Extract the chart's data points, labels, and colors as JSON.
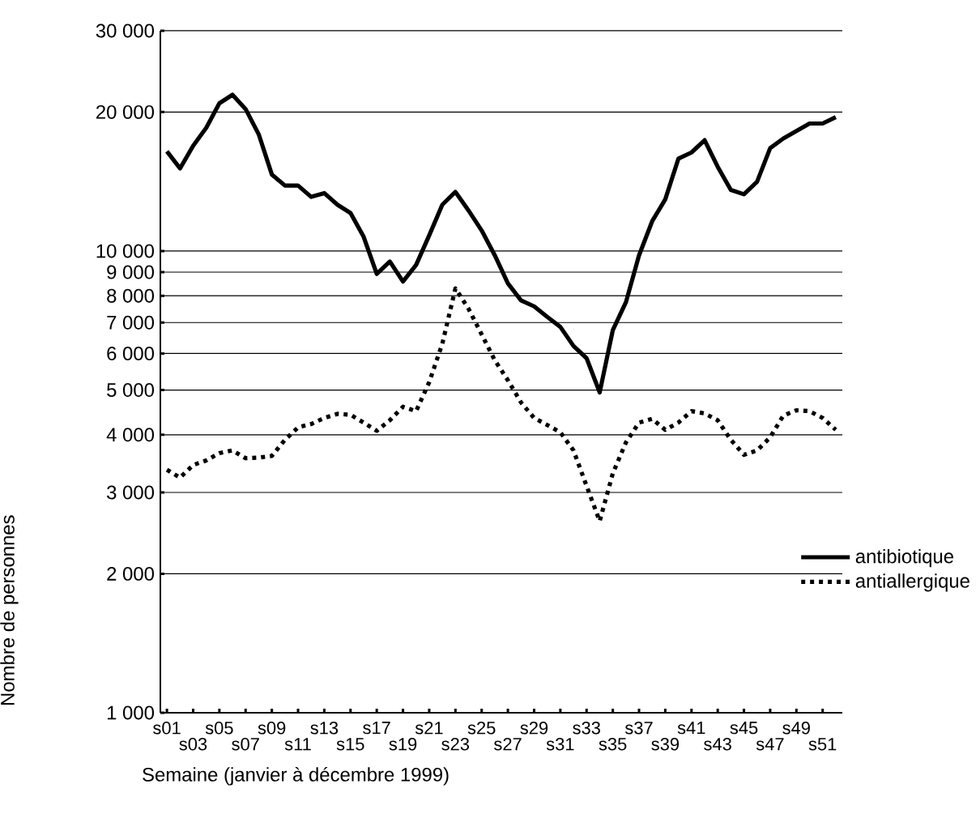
{
  "chart_data": {
    "type": "line",
    "xlabel": "Semaine (janvier à décembre 1999)",
    "ylabel": "Nombre de personnes",
    "categories": [
      "s01",
      null,
      "s03",
      null,
      "s05",
      null,
      "s07",
      null,
      "s09",
      null,
      "s11",
      null,
      "s13",
      null,
      "s15",
      null,
      "s17",
      null,
      "s19",
      null,
      "s21",
      null,
      "s23",
      null,
      "s25",
      null,
      "s27",
      null,
      "s29",
      null,
      "s31",
      null,
      "s33",
      null,
      "s35",
      null,
      "s37",
      null,
      "s39",
      null,
      "s41",
      null,
      "s43",
      null,
      "s45",
      null,
      "s47",
      null,
      "s49",
      null,
      "s51",
      null
    ],
    "series": [
      {
        "name": "antibiotique",
        "color": "#000000",
        "line_style": "solid",
        "values": [
          16440,
          15100,
          16900,
          18500,
          20900,
          21800,
          20300,
          17900,
          14650,
          13860,
          13860,
          13100,
          13350,
          12600,
          12090,
          10740,
          8920,
          9490,
          8590,
          9330,
          10810,
          12600,
          13430,
          12240,
          11080,
          9790,
          8510,
          7820,
          7590,
          7200,
          6850,
          6230,
          5860,
          4940,
          6740,
          7750,
          9790,
          11600,
          12940,
          15850,
          16350,
          17380,
          15220,
          13560,
          13270,
          14130,
          16710,
          17530,
          18200,
          18890,
          18890,
          19500
        ]
      },
      {
        "name": "antiallergique",
        "color": "#000000",
        "line_style": "dotted",
        "values": [
          3360,
          3230,
          3440,
          3520,
          3650,
          3700,
          3560,
          3570,
          3600,
          3900,
          4150,
          4220,
          4350,
          4440,
          4420,
          4250,
          4080,
          4300,
          4600,
          4500,
          5200,
          6300,
          8300,
          7500,
          6600,
          5800,
          5250,
          4700,
          4350,
          4200,
          4050,
          3700,
          3100,
          2600,
          3300,
          3850,
          4250,
          4330,
          4100,
          4250,
          4500,
          4450,
          4300,
          3900,
          3620,
          3700,
          3950,
          4400,
          4520,
          4500,
          4350,
          4100
        ]
      }
    ],
    "log": "y",
    "ylim": [
      1000,
      30000
    ],
    "yticks": [
      {
        "value": 1000,
        "label": "1 000"
      },
      {
        "value": 2000,
        "label": "2 000"
      },
      {
        "value": 3000,
        "label": "3 000"
      },
      {
        "value": 4000,
        "label": "4 000"
      },
      {
        "value": 5000,
        "label": "5 000"
      },
      {
        "value": 6000,
        "label": "6 000"
      },
      {
        "value": 7000,
        "label": "7 000"
      },
      {
        "value": 8000,
        "label": "8 000"
      },
      {
        "value": 9000,
        "label": "9 000"
      },
      {
        "value": 10000,
        "label": "10 000"
      },
      {
        "value": 20000,
        "label": "20 000"
      },
      {
        "value": 30000,
        "label": "30 000"
      }
    ],
    "grid": "y",
    "legend": "bottom right",
    "marker": "none"
  }
}
